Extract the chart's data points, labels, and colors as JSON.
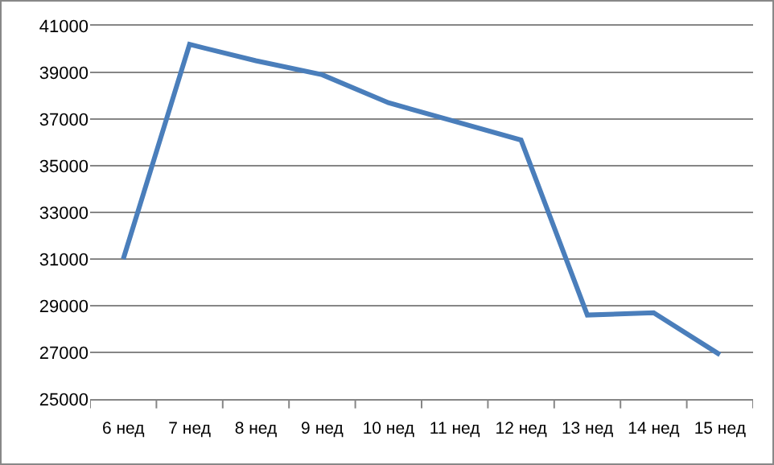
{
  "chart_data": {
    "type": "line",
    "categories": [
      "6 нед",
      "7 нед",
      "8 нед",
      "9 нед",
      "10 нед",
      "11 нед",
      "12 нед",
      "13 нед",
      "14 нед",
      "15 нед"
    ],
    "series": [
      {
        "color": "#4a7ebb",
        "values": [
          31000,
          40200,
          39500,
          38900,
          37700,
          36900,
          36100,
          28600,
          28700,
          26900
        ]
      }
    ],
    "ylim": [
      25000,
      41000
    ],
    "yticks": [
      25000,
      27000,
      29000,
      31000,
      33000,
      35000,
      37000,
      39000,
      41000
    ],
    "grid": "y",
    "marker": "none",
    "line_style": "solid"
  }
}
